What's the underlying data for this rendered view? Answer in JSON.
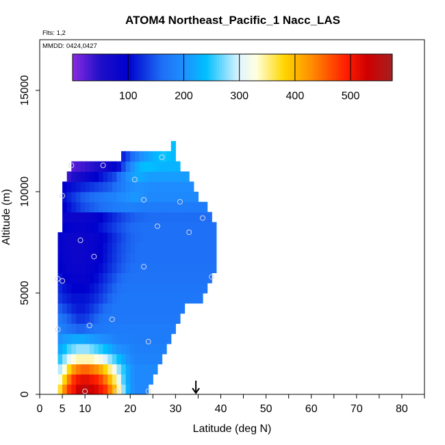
{
  "chart_data": {
    "type": "heatmap",
    "title": "ATOM4 Northeast_Pacific_1 Nacc_LAS",
    "flights_note": "Flts: 1,2",
    "dates_note": "MMDD: 0424,0427",
    "xlabel": "Latitude (deg N)",
    "ylabel": "Altitude (m)",
    "xlim": [
      0,
      85
    ],
    "ylim": [
      0,
      17500
    ],
    "x_ticks": [
      0,
      5,
      10,
      20,
      30,
      40,
      50,
      60,
      70,
      80
    ],
    "y_ticks": [
      0,
      5000,
      10000,
      15000
    ],
    "colorbar": {
      "range": [
        0,
        575
      ],
      "ticks": [
        100,
        200,
        300,
        400,
        500
      ],
      "stops": [
        {
          "v": 0,
          "c": "#8a2be2"
        },
        {
          "v": 50,
          "c": "#1e0fc8"
        },
        {
          "v": 100,
          "c": "#0000cd"
        },
        {
          "v": 160,
          "c": "#1e6ef5"
        },
        {
          "v": 200,
          "c": "#1e90ff"
        },
        {
          "v": 240,
          "c": "#00bfff"
        },
        {
          "v": 300,
          "c": "#e0f4ff"
        },
        {
          "v": 330,
          "c": "#ffffe0"
        },
        {
          "v": 380,
          "c": "#ffd700"
        },
        {
          "v": 430,
          "c": "#ff8c00"
        },
        {
          "v": 490,
          "c": "#ff2000"
        },
        {
          "v": 530,
          "c": "#d00000"
        },
        {
          "v": 575,
          "c": "#a52020"
        }
      ]
    },
    "field_rows": [
      {
        "alt": [
          0,
          500
        ],
        "lat": [
          4,
          24
        ],
        "values": [
          370,
          430,
          480,
          500,
          530,
          540,
          540,
          530,
          520,
          500,
          480,
          440,
          400,
          340,
          280,
          230,
          200,
          190,
          190,
          190
        ]
      },
      {
        "alt": [
          500,
          1000
        ],
        "lat": [
          4,
          25
        ],
        "values": [
          330,
          380,
          440,
          480,
          500,
          510,
          510,
          500,
          490,
          470,
          440,
          400,
          360,
          310,
          260,
          220,
          200,
          190,
          190,
          190,
          190
        ]
      },
      {
        "alt": [
          1000,
          1500
        ],
        "lat": [
          4,
          26
        ],
        "values": [
          290,
          330,
          380,
          420,
          440,
          450,
          450,
          440,
          430,
          410,
          380,
          350,
          320,
          280,
          250,
          220,
          200,
          190,
          190,
          190,
          190,
          190
        ]
      },
      {
        "alt": [
          1500,
          2000
        ],
        "lat": [
          4,
          27
        ],
        "values": [
          250,
          280,
          310,
          330,
          340,
          340,
          340,
          340,
          330,
          320,
          300,
          280,
          260,
          240,
          220,
          200,
          190,
          185,
          185,
          185,
          185,
          185,
          185
        ]
      },
      {
        "alt": [
          2000,
          2500
        ],
        "lat": [
          4,
          28
        ],
        "values": [
          220,
          240,
          260,
          270,
          280,
          280,
          280,
          270,
          260,
          250,
          240,
          225,
          210,
          200,
          195,
          190,
          185,
          180,
          180,
          180,
          180,
          180,
          180,
          180
        ]
      },
      {
        "alt": [
          2500,
          3000
        ],
        "lat": [
          4,
          29
        ],
        "values": [
          200,
          210,
          215,
          220,
          220,
          220,
          215,
          210,
          205,
          200,
          195,
          190,
          185,
          180,
          180,
          180,
          178,
          176,
          176,
          176,
          176,
          176,
          176,
          176,
          176
        ]
      },
      {
        "alt": [
          3000,
          3500
        ],
        "lat": [
          4,
          30
        ],
        "values": [
          185,
          175,
          165,
          160,
          155,
          155,
          160,
          165,
          170,
          172,
          174,
          175,
          175,
          175,
          175,
          175,
          175,
          175,
          175,
          175,
          175,
          175,
          175,
          175,
          175,
          175
        ]
      },
      {
        "alt": [
          3500,
          4000
        ],
        "lat": [
          4,
          31
        ],
        "values": [
          170,
          160,
          150,
          140,
          130,
          130,
          135,
          145,
          155,
          165,
          170,
          172,
          172,
          172,
          172,
          172,
          172,
          172,
          172,
          172,
          172,
          172,
          172,
          172,
          172,
          172,
          172
        ]
      },
      {
        "alt": [
          4000,
          4500
        ],
        "lat": [
          4,
          32
        ],
        "values": [
          150,
          140,
          130,
          120,
          115,
          115,
          120,
          130,
          140,
          150,
          160,
          165,
          170,
          170,
          170,
          170,
          170,
          170,
          170,
          170,
          170,
          170,
          170,
          170,
          170,
          170,
          170,
          170
        ]
      },
      {
        "alt": [
          4500,
          5000
        ],
        "lat": [
          4,
          36
        ],
        "values": [
          130,
          120,
          115,
          110,
          110,
          110,
          112,
          118,
          125,
          135,
          145,
          155,
          162,
          168,
          170,
          170,
          170,
          170,
          170,
          170,
          170,
          170,
          170,
          170,
          170,
          170,
          170,
          170,
          170,
          170,
          170,
          170
        ]
      },
      {
        "alt": [
          5000,
          5500
        ],
        "lat": [
          4,
          37
        ],
        "values": [
          120,
          110,
          105,
          100,
          100,
          100,
          102,
          108,
          115,
          125,
          135,
          145,
          155,
          162,
          166,
          168,
          168,
          168,
          168,
          168,
          168,
          168,
          168,
          168,
          168,
          168,
          168,
          168,
          168,
          168,
          168,
          168,
          168
        ]
      },
      {
        "alt": [
          5500,
          6000
        ],
        "lat": [
          4,
          38
        ],
        "values": [
          110,
          100,
          95,
          90,
          90,
          90,
          92,
          98,
          105,
          115,
          125,
          135,
          145,
          155,
          160,
          165,
          166,
          166,
          166,
          166,
          166,
          166,
          166,
          166,
          166,
          166,
          166,
          166,
          166,
          166,
          166,
          166,
          166,
          166
        ]
      },
      {
        "alt": [
          6000,
          6500
        ],
        "lat": [
          4,
          39
        ],
        "values": [
          100,
          92,
          88,
          85,
          85,
          85,
          88,
          92,
          98,
          105,
          115,
          125,
          135,
          145,
          152,
          158,
          162,
          164,
          165,
          165,
          165,
          165,
          165,
          165,
          165,
          165,
          165,
          165,
          165,
          165,
          165,
          165,
          165,
          165,
          165
        ]
      },
      {
        "alt": [
          6500,
          7000
        ],
        "lat": [
          4,
          39
        ],
        "values": [
          95,
          88,
          84,
          80,
          80,
          80,
          82,
          86,
          92,
          100,
          110,
          120,
          130,
          140,
          148,
          154,
          158,
          161,
          163,
          164,
          164,
          164,
          164,
          164,
          164,
          164,
          164,
          164,
          164,
          164,
          164,
          164,
          164,
          164,
          164
        ]
      },
      {
        "alt": [
          7000,
          7500
        ],
        "lat": [
          4,
          39
        ],
        "values": [
          92,
          86,
          82,
          80,
          80,
          80,
          82,
          86,
          92,
          100,
          108,
          118,
          128,
          138,
          146,
          152,
          156,
          160,
          162,
          163,
          163,
          163,
          163,
          163,
          163,
          163,
          163,
          163,
          163,
          163,
          163,
          163,
          163,
          163,
          163
        ]
      },
      {
        "alt": [
          7500,
          8000
        ],
        "lat": [
          4,
          39
        ],
        "values": [
          90,
          85,
          82,
          80,
          80,
          80,
          82,
          85,
          90,
          96,
          104,
          114,
          124,
          134,
          142,
          150,
          155,
          158,
          160,
          162,
          162,
          162,
          162,
          162,
          162,
          162,
          162,
          162,
          162,
          162,
          162,
          162,
          162,
          162,
          162
        ]
      },
      {
        "alt": [
          8000,
          8500
        ],
        "lat": [
          5,
          39
        ],
        "values": [
          100,
          96,
          92,
          90,
          90,
          92,
          96,
          102,
          110,
          118,
          126,
          134,
          142,
          148,
          154,
          158,
          160,
          162,
          162,
          162,
          162,
          162,
          162,
          162,
          162,
          162,
          162,
          162,
          162,
          162,
          162,
          162,
          162,
          162
        ]
      },
      {
        "alt": [
          8500,
          9000
        ],
        "lat": [
          5,
          38
        ],
        "values": [
          85,
          82,
          80,
          80,
          80,
          82,
          86,
          92,
          100,
          108,
          116,
          124,
          132,
          140,
          146,
          150,
          154,
          156,
          158,
          160,
          160,
          160,
          160,
          160,
          160,
          160,
          160,
          160,
          160,
          160,
          160,
          160,
          160
        ]
      },
      {
        "alt": [
          9000,
          9500
        ],
        "lat": [
          5,
          37
        ],
        "values": [
          100,
          110,
          120,
          130,
          140,
          145,
          150,
          155,
          160,
          165,
          170,
          175,
          178,
          180,
          182,
          182,
          180,
          178,
          176,
          175,
          175,
          175,
          175,
          175,
          175,
          175,
          175,
          175,
          175,
          175,
          175,
          175
        ]
      },
      {
        "alt": [
          9500,
          10000
        ],
        "lat": [
          5,
          35
        ],
        "values": [
          110,
          120,
          130,
          140,
          150,
          155,
          160,
          165,
          170,
          175,
          180,
          185,
          190,
          195,
          200,
          205,
          205,
          200,
          195,
          190,
          190,
          190,
          190,
          190,
          190,
          190,
          190,
          190,
          190,
          190
        ]
      },
      {
        "alt": [
          10000,
          10500
        ],
        "lat": [
          5,
          34
        ],
        "values": [
          100,
          105,
          110,
          115,
          120,
          125,
          130,
          135,
          140,
          145,
          150,
          160,
          170,
          180,
          190,
          195,
          200,
          200,
          198,
          195,
          195,
          195,
          195,
          195,
          195,
          195,
          195,
          195,
          195
        ]
      },
      {
        "alt": [
          10500,
          11000
        ],
        "lat": [
          6,
          33
        ],
        "values": [
          40,
          50,
          60,
          70,
          80,
          90,
          100,
          110,
          120,
          130,
          140,
          160,
          180,
          200,
          210,
          220,
          220,
          215,
          210,
          210,
          210,
          210,
          210,
          210,
          210,
          210,
          210
        ]
      },
      {
        "alt": [
          11000,
          11500
        ],
        "lat": [
          7,
          31
        ],
        "values": [
          25,
          30,
          35,
          40,
          45,
          50,
          60,
          70,
          80,
          90,
          110,
          140,
          170,
          200,
          220,
          235,
          240,
          238,
          235,
          232,
          230,
          230,
          230,
          230
        ]
      },
      {
        "alt": [
          11500,
          12000
        ],
        "lat": [
          18,
          30
        ],
        "values": [
          120,
          140,
          160,
          180,
          200,
          210,
          220,
          230,
          240,
          245,
          240,
          235
        ]
      },
      {
        "alt": [
          12000,
          12500
        ],
        "lat": [
          29,
          30
        ],
        "values": [
          240
        ]
      }
    ],
    "sample_points": [
      {
        "lat": 7,
        "alt": 11300
      },
      {
        "lat": 14,
        "alt": 11300
      },
      {
        "lat": 27,
        "alt": 11700
      },
      {
        "lat": 21,
        "alt": 10600
      },
      {
        "lat": 5,
        "alt": 9800
      },
      {
        "lat": 23,
        "alt": 9600
      },
      {
        "lat": 31,
        "alt": 9500
      },
      {
        "lat": 36,
        "alt": 8700
      },
      {
        "lat": 26,
        "alt": 8300
      },
      {
        "lat": 33,
        "alt": 8000
      },
      {
        "lat": 9,
        "alt": 7600
      },
      {
        "lat": 12,
        "alt": 6800
      },
      {
        "lat": 23,
        "alt": 6300
      },
      {
        "lat": 38,
        "alt": 5800
      },
      {
        "lat": 4,
        "alt": 5700
      },
      {
        "lat": 5,
        "alt": 5600
      },
      {
        "lat": 16,
        "alt": 3700
      },
      {
        "lat": 11,
        "alt": 3400
      },
      {
        "lat": 4,
        "alt": 3200
      },
      {
        "lat": 24,
        "alt": 2600
      },
      {
        "lat": 10,
        "alt": 150
      },
      {
        "lat": 17,
        "alt": 150
      },
      {
        "lat": 24,
        "alt": 150
      }
    ],
    "arrow_marker": {
      "lat": 34.5
    },
    "grid": false,
    "legend": "top"
  }
}
